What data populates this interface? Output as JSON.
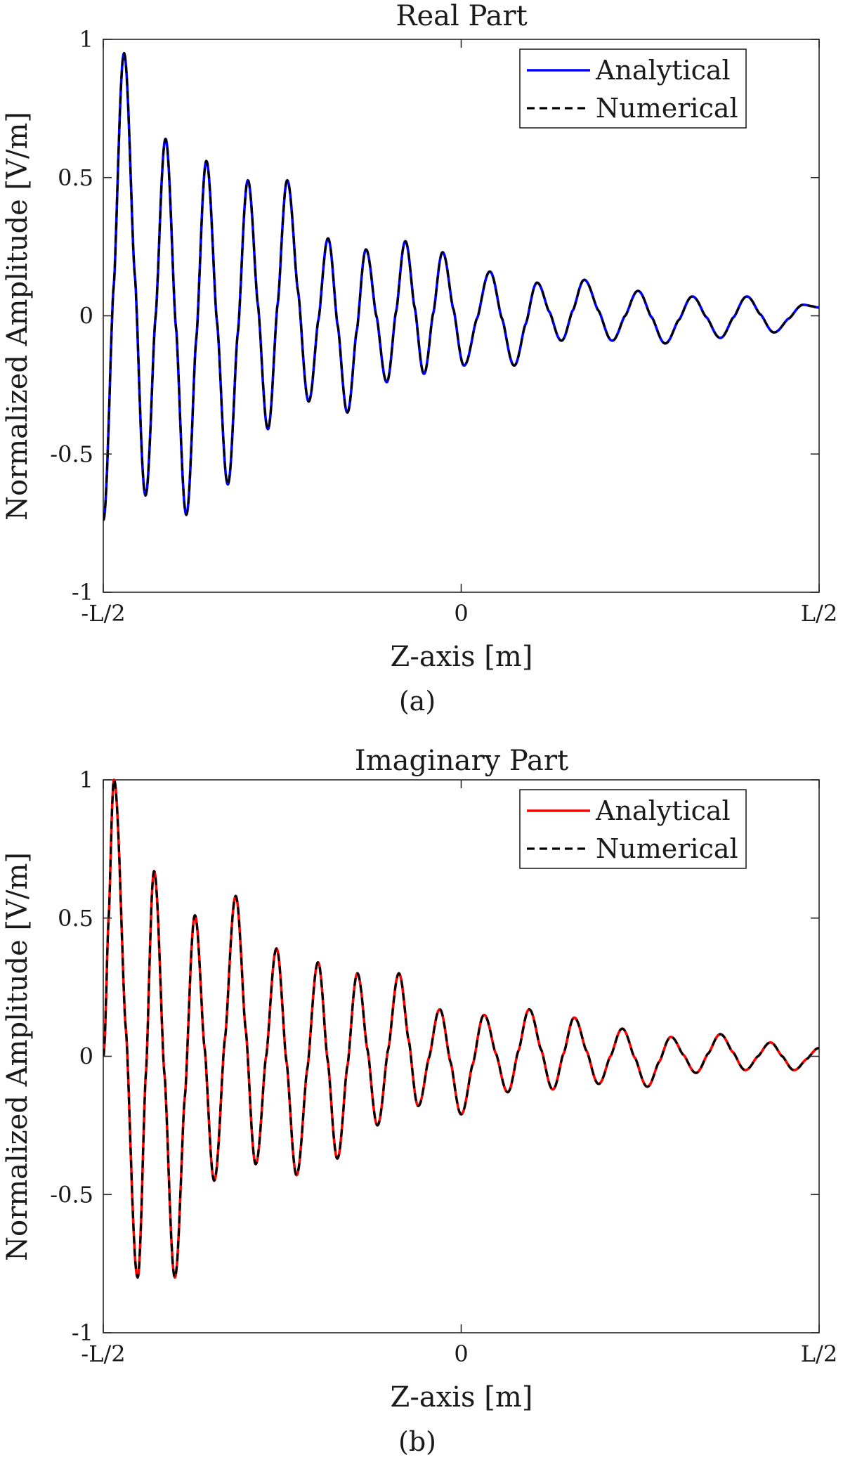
{
  "chart_data": [
    {
      "type": "line",
      "caption": "(a)",
      "title": "Real Part",
      "xlabel": "Z-axis [m]",
      "ylabel": "Normalized Amplitude [V/m]",
      "xlim": [
        -0.5,
        0.5
      ],
      "ylim": [
        -1,
        1
      ],
      "xticks": [
        -0.5,
        0,
        0.5
      ],
      "xtick_labels": [
        "-L/2",
        "0",
        "L/2"
      ],
      "yticks": [
        1,
        0.5,
        0,
        -0.5,
        -1
      ],
      "ytick_labels": [
        "1",
        "0.5",
        "0",
        "-0.5",
        "-1"
      ],
      "grid": false,
      "legend_position": "top-right",
      "series": [
        {
          "name": "Analytical",
          "color": "#0000ff",
          "style": "solid",
          "x": [
            -0.5,
            -0.471,
            -0.441,
            -0.413,
            -0.384,
            -0.356,
            -0.326,
            -0.298,
            -0.27,
            -0.243,
            -0.213,
            -0.186,
            -0.159,
            -0.133,
            -0.104,
            -0.078,
            -0.052,
            -0.026,
            0.004,
            0.04,
            0.074,
            0.106,
            0.14,
            0.172,
            0.211,
            0.247,
            0.285,
            0.323,
            0.362,
            0.399,
            0.437,
            0.478,
            0.5
          ],
          "y": [
            -0.74,
            0.95,
            -0.65,
            0.64,
            -0.72,
            0.56,
            -0.61,
            0.49,
            -0.41,
            0.49,
            -0.31,
            0.28,
            -0.35,
            0.24,
            -0.24,
            0.27,
            -0.21,
            0.23,
            -0.18,
            0.16,
            -0.18,
            0.12,
            -0.09,
            0.13,
            -0.09,
            0.09,
            -0.1,
            0.07,
            -0.08,
            0.07,
            -0.06,
            0.04,
            0.03
          ]
        },
        {
          "name": "Numerical",
          "color": "#000000",
          "style": "dashed",
          "x": [
            -0.5,
            -0.471,
            -0.441,
            -0.413,
            -0.384,
            -0.356,
            -0.326,
            -0.298,
            -0.27,
            -0.243,
            -0.213,
            -0.186,
            -0.159,
            -0.133,
            -0.104,
            -0.078,
            -0.052,
            -0.026,
            0.004,
            0.04,
            0.074,
            0.106,
            0.14,
            0.172,
            0.211,
            0.247,
            0.285,
            0.323,
            0.362,
            0.399,
            0.437,
            0.478,
            0.5
          ],
          "y": [
            -0.74,
            0.95,
            -0.65,
            0.64,
            -0.72,
            0.56,
            -0.61,
            0.49,
            -0.41,
            0.49,
            -0.31,
            0.28,
            -0.35,
            0.24,
            -0.24,
            0.27,
            -0.21,
            0.23,
            -0.18,
            0.16,
            -0.18,
            0.12,
            -0.09,
            0.13,
            -0.09,
            0.09,
            -0.1,
            0.07,
            -0.08,
            0.07,
            -0.06,
            0.04,
            0.03
          ]
        }
      ]
    },
    {
      "type": "line",
      "caption": "(b)",
      "title": "Imaginary Part",
      "xlabel": "Z-axis [m]",
      "ylabel": "Normalized Amplitude [V/m]",
      "xlim": [
        -0.5,
        0.5
      ],
      "ylim": [
        -1,
        1
      ],
      "xticks": [
        -0.5,
        0,
        0.5
      ],
      "xtick_labels": [
        "-L/2",
        "0",
        "L/2"
      ],
      "yticks": [
        1,
        0.5,
        0,
        -0.5,
        -1
      ],
      "ytick_labels": [
        "1",
        "0.5",
        "0",
        "-0.5",
        "-1"
      ],
      "grid": false,
      "legend_position": "top-right",
      "series": [
        {
          "name": "Analytical",
          "color": "#ff0000",
          "style": "solid",
          "x": [
            -0.5,
            -0.485,
            -0.452,
            -0.429,
            -0.4,
            -0.372,
            -0.345,
            -0.315,
            -0.287,
            -0.258,
            -0.23,
            -0.2,
            -0.173,
            -0.145,
            -0.117,
            -0.087,
            -0.06,
            -0.03,
            0.0,
            0.032,
            0.065,
            0.095,
            0.128,
            0.158,
            0.192,
            0.225,
            0.26,
            0.293,
            0.328,
            0.362,
            0.397,
            0.432,
            0.465,
            0.5
          ],
          "y": [
            0.0,
            1.0,
            -0.8,
            0.67,
            -0.8,
            0.51,
            -0.45,
            0.58,
            -0.39,
            0.39,
            -0.43,
            0.34,
            -0.37,
            0.3,
            -0.25,
            0.3,
            -0.18,
            0.17,
            -0.21,
            0.15,
            -0.13,
            0.17,
            -0.12,
            0.14,
            -0.1,
            0.1,
            -0.11,
            0.07,
            -0.06,
            0.08,
            -0.05,
            0.05,
            -0.05,
            0.03
          ]
        },
        {
          "name": "Numerical",
          "color": "#000000",
          "style": "dashed",
          "x": [
            -0.5,
            -0.485,
            -0.452,
            -0.429,
            -0.4,
            -0.372,
            -0.345,
            -0.315,
            -0.287,
            -0.258,
            -0.23,
            -0.2,
            -0.173,
            -0.145,
            -0.117,
            -0.087,
            -0.06,
            -0.03,
            0.0,
            0.032,
            0.065,
            0.095,
            0.128,
            0.158,
            0.192,
            0.225,
            0.26,
            0.293,
            0.328,
            0.362,
            0.397,
            0.432,
            0.465,
            0.5
          ],
          "y": [
            0.0,
            1.0,
            -0.8,
            0.67,
            -0.8,
            0.51,
            -0.45,
            0.58,
            -0.39,
            0.39,
            -0.43,
            0.34,
            -0.37,
            0.3,
            -0.25,
            0.3,
            -0.18,
            0.17,
            -0.21,
            0.15,
            -0.13,
            0.17,
            -0.12,
            0.14,
            -0.1,
            0.1,
            -0.11,
            0.07,
            -0.06,
            0.08,
            -0.05,
            0.05,
            -0.05,
            0.03
          ]
        }
      ]
    }
  ]
}
